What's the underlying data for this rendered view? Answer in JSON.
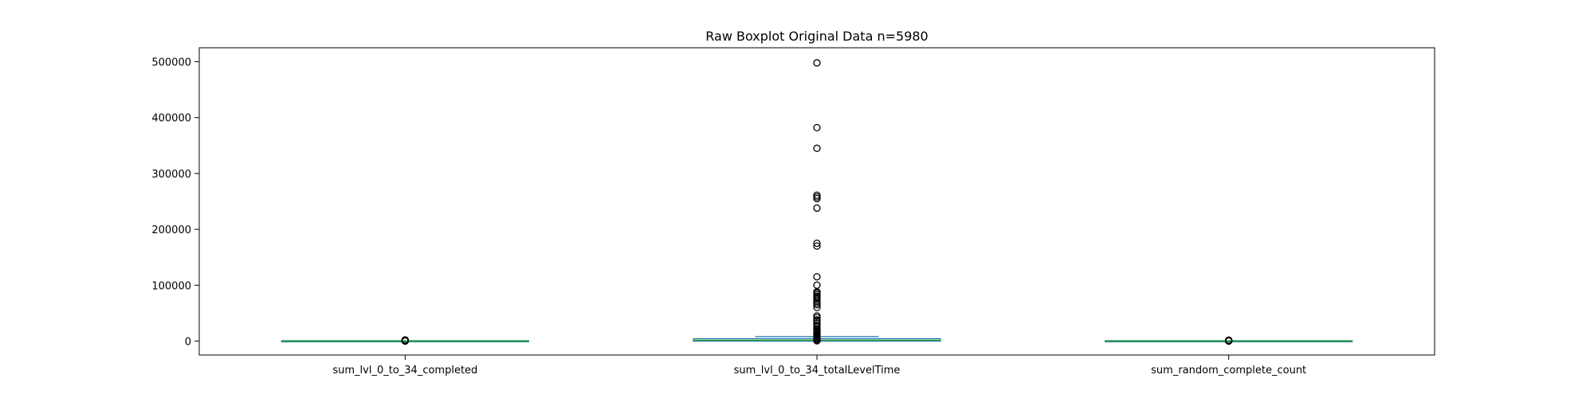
{
  "chart_data": {
    "type": "boxplot",
    "title": "Raw Boxplot Original Data n=5980",
    "xlabel": "",
    "ylabel": "",
    "ylim": [
      -25000,
      525000
    ],
    "yticks": [
      0,
      100000,
      200000,
      300000,
      400000,
      500000
    ],
    "grid": false,
    "legend": "none",
    "colors": {
      "box": "#1f77b4",
      "median": "#2ca02c",
      "whisker": "#1f77b4",
      "outlier_edge": "#000000",
      "frame": "#000000"
    },
    "categories": [
      "sum_lvl_0_to_34_completed",
      "sum_lvl_0_to_34_totalLevelTime",
      "sum_random_complete_count"
    ],
    "boxes": [
      {
        "name": "sum_lvl_0_to_34_completed",
        "whisker_low": 0,
        "q1": 0,
        "median": 0,
        "q3": 0,
        "whisker_high": 0,
        "outliers": [
          0,
          500,
          1000,
          1500,
          2000
        ]
      },
      {
        "name": "sum_lvl_0_to_34_totalLevelTime",
        "whisker_low": 0,
        "q1": 500,
        "median": 1500,
        "q3": 3500,
        "whisker_high": 8000,
        "outliers": [
          500,
          2000,
          4000,
          6000,
          8000,
          10000,
          12000,
          14000,
          16000,
          18000,
          20000,
          22000,
          25000,
          28000,
          32000,
          36000,
          38000,
          42000,
          45000,
          60000,
          65000,
          68000,
          72000,
          75000,
          78000,
          80000,
          83000,
          86000,
          88000,
          100000,
          115000,
          170000,
          175000,
          238000,
          255000,
          258000,
          261000,
          345000,
          382000,
          498000
        ]
      },
      {
        "name": "sum_random_complete_count",
        "whisker_low": 0,
        "q1": 0,
        "median": 0,
        "q3": 0,
        "whisker_high": 0,
        "outliers": [
          0,
          300,
          800,
          1200,
          1700
        ]
      }
    ]
  }
}
